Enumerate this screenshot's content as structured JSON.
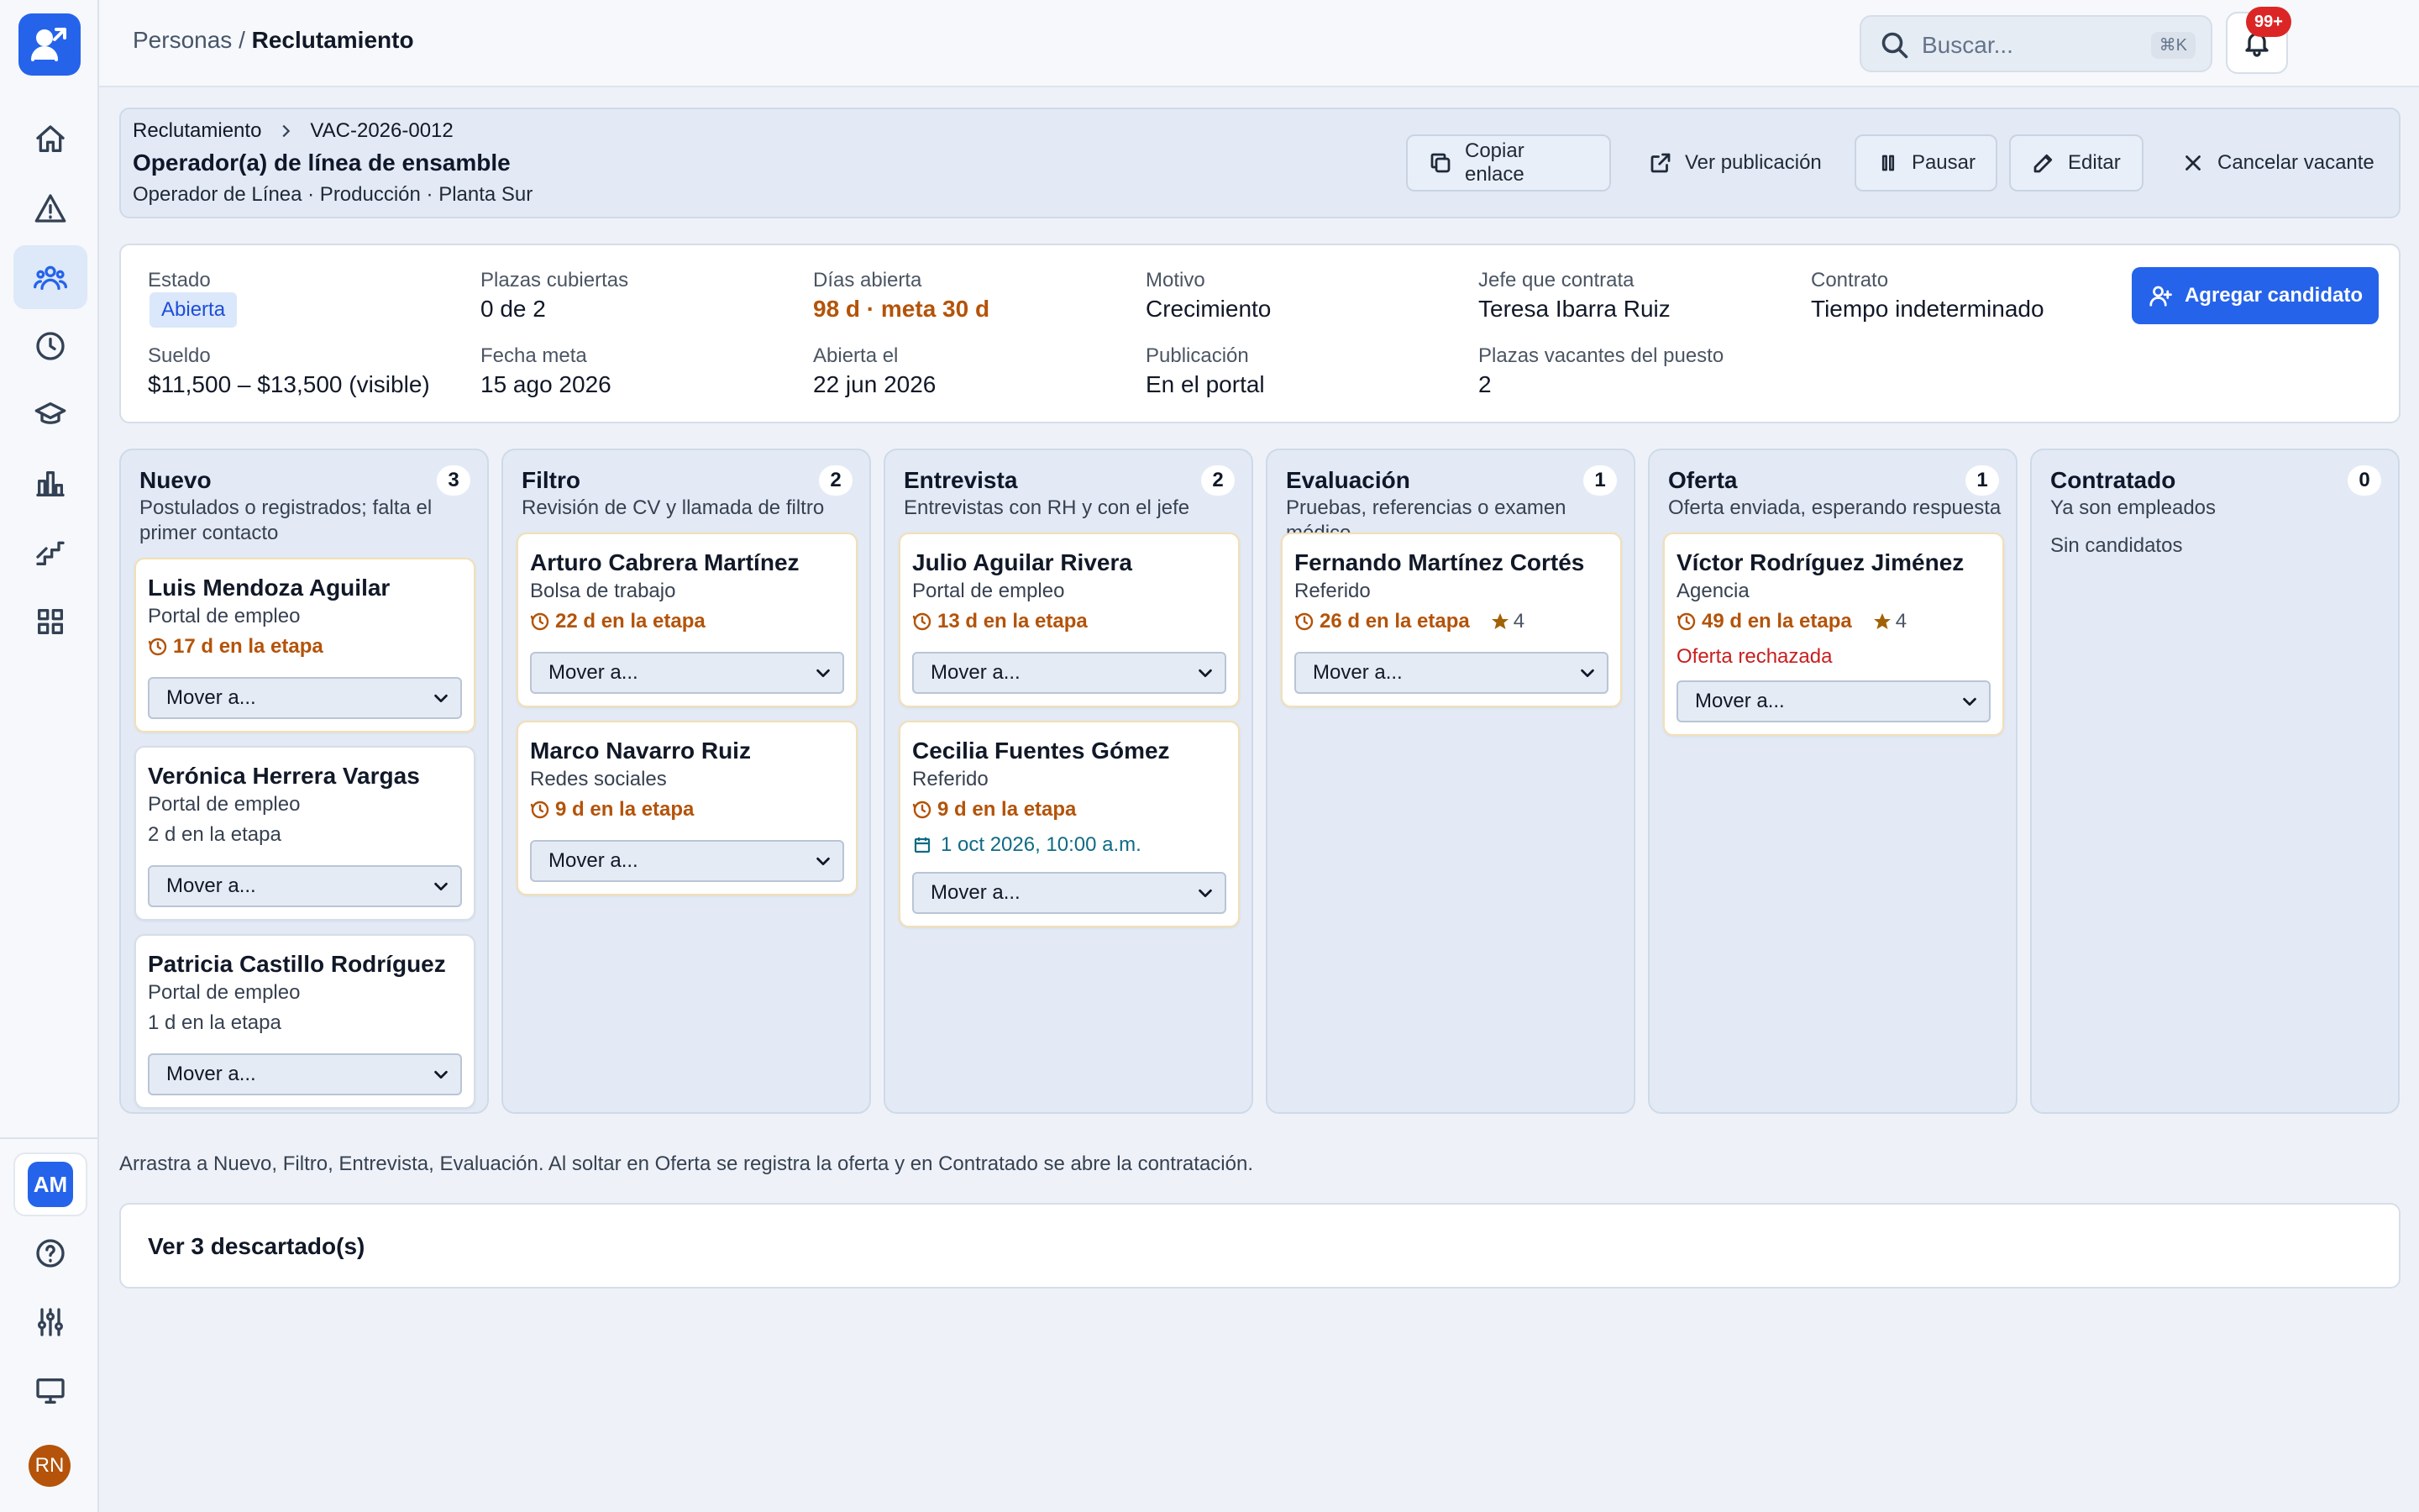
{
  "topbar": {
    "breadcrumb_parent": "Personas",
    "breadcrumb_sep": "/",
    "breadcrumb_current": "Reclutamiento",
    "search_placeholder": "Buscar...",
    "search_shortcut": "⌘K",
    "notifications_badge": "99+"
  },
  "sidebar": {
    "items": [
      "home-icon",
      "alert-icon",
      "people-icon",
      "clock-icon",
      "graduation-icon",
      "chart-icon",
      "growth-icon",
      "grid-icon"
    ],
    "active": "people-icon",
    "workspace_initials": "AM",
    "user_initials": "RN",
    "bottom_items": [
      "help-icon",
      "sliders-icon",
      "monitor-icon"
    ]
  },
  "header": {
    "crumb_root": "Reclutamiento",
    "crumb_id": "VAC-2026-0012",
    "title": "Operador(a) de línea de ensamble",
    "subtitle": "Operador de Línea · Producción · Planta Sur",
    "actions": {
      "copy": "Copiar enlace",
      "view": "Ver publicación",
      "pause": "Pausar",
      "edit": "Editar",
      "cancel": "Cancelar vacante"
    }
  },
  "info": {
    "estado_label": "Estado",
    "estado_value": "Abierta",
    "plazas_label": "Plazas cubiertas",
    "plazas_value": "0 de 2",
    "dias_label": "Días abierta",
    "dias_value": "98 d · meta 30 d",
    "motivo_label": "Motivo",
    "motivo_value": "Crecimiento",
    "jefe_label": "Jefe que contrata",
    "jefe_value": "Teresa Ibarra Ruiz",
    "contrato_label": "Contrato",
    "contrato_value": "Tiempo indeterminado",
    "sueldo_label": "Sueldo",
    "sueldo_value": "$11,500 – $13,500 (visible)",
    "fecha_meta_label": "Fecha meta",
    "fecha_meta_value": "15 ago 2026",
    "abierta_label": "Abierta el",
    "abierta_value": "22 jun 2026",
    "publicacion_label": "Publicación",
    "publicacion_value": "En el portal",
    "vacantes_label": "Plazas vacantes del puesto",
    "vacantes_value": "2",
    "add_button": "Agregar candidato"
  },
  "move_label": "Mover a...",
  "columns": [
    {
      "title": "Nuevo",
      "count": "3",
      "desc": "Postulados o registrados; falta el primer contacto",
      "cards": [
        {
          "name": "Luis Mendoza Aguilar",
          "source": "Portal de empleo",
          "days": "17 d en la etapa"
        },
        {
          "name": "Verónica Herrera Vargas",
          "source": "Portal de empleo",
          "days": "2 d en la etapa"
        },
        {
          "name": "Patricia Castillo Rodríguez",
          "source": "Portal de empleo",
          "days": "1 d en la etapa"
        }
      ]
    },
    {
      "title": "Filtro",
      "count": "2",
      "desc": "Revisión de CV y llamada de filtro",
      "cards": [
        {
          "name": "Arturo Cabrera Martínez",
          "source": "Bolsa de trabajo",
          "days": "22 d en la etapa"
        },
        {
          "name": "Marco Navarro Ruiz",
          "source": "Redes sociales",
          "days": "9 d en la etapa"
        }
      ]
    },
    {
      "title": "Entrevista",
      "count": "2",
      "desc": "Entrevistas con RH y con el jefe",
      "cards": [
        {
          "name": "Julio Aguilar Rivera",
          "source": "Portal de empleo",
          "days": "13 d en la etapa"
        },
        {
          "name": "Cecilia Fuentes Gómez",
          "source": "Referido",
          "days": "9 d en la etapa",
          "interview": "1 oct 2026, 10:00 a.m."
        }
      ]
    },
    {
      "title": "Evaluación",
      "count": "1",
      "desc": "Pruebas, referencias o examen médico",
      "cards": [
        {
          "name": "Fernando Martínez Cortés",
          "source": "Referido",
          "days": "26 d en la etapa",
          "rating": "4"
        }
      ]
    },
    {
      "title": "Oferta",
      "count": "1",
      "desc": "Oferta enviada, esperando respuesta",
      "cards": [
        {
          "name": "Víctor Rodríguez Jiménez",
          "source": "Agencia",
          "days": "49 d en la etapa",
          "rating": "4",
          "status": "Oferta rechazada"
        }
      ]
    },
    {
      "title": "Contratado",
      "count": "0",
      "desc": "Ya son empleados",
      "empty": "Sin candidatos",
      "cards": []
    }
  ],
  "hint": "Arrastra a Nuevo, Filtro, Entrevista, Evaluación. Al soltar en Oferta se registra la oferta y en Contratado se abre la contratación.",
  "discarded": "Ver 3 descartado(s)",
  "colors": {
    "accent": "#2563eb",
    "warning": "#b45309",
    "danger": "#c81e1e",
    "info": "#0e6b85"
  }
}
